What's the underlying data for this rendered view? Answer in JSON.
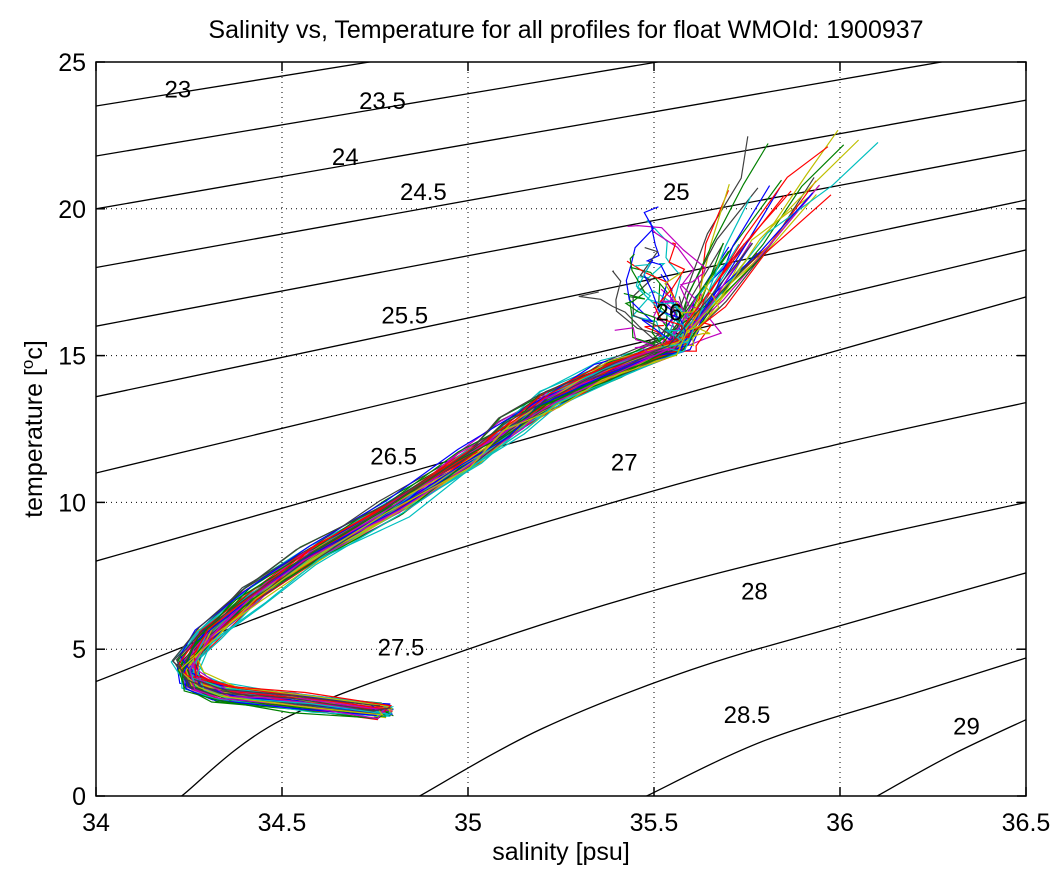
{
  "chart_data": {
    "type": "line",
    "title": "Salinity vs, Temperature for all profiles for float WMOId: 1900937",
    "xlabel": "salinity [psu]",
    "ylabel_main": "temperature [",
    "ylabel_sup": "o",
    "ylabel_tail": "c]",
    "xlim": [
      34,
      36.5
    ],
    "ylim": [
      0,
      25
    ],
    "xticks": [
      "34",
      "34.5",
      "35",
      "35.5",
      "36",
      "36.5"
    ],
    "yticks": [
      "0",
      "5",
      "10",
      "15",
      "20",
      "25"
    ],
    "grid": "dotted",
    "density_contours": [
      {
        "label": "23",
        "label_at": [
          34.22,
          24.1
        ],
        "points": [
          [
            34.0,
            23.5
          ],
          [
            36.5,
            28.6
          ]
        ]
      },
      {
        "label": "23.5",
        "label_at": [
          34.77,
          23.7
        ],
        "points": [
          [
            34.0,
            21.8
          ],
          [
            36.5,
            27.1
          ]
        ]
      },
      {
        "label": "24",
        "label_at": [
          34.67,
          21.8
        ],
        "points": [
          [
            34.0,
            20.0
          ],
          [
            36.5,
            25.5
          ]
        ]
      },
      {
        "label": "24.5",
        "label_at": [
          34.88,
          20.6
        ],
        "points": [
          [
            34.0,
            18.0
          ],
          [
            36.5,
            23.7
          ]
        ]
      },
      {
        "label": "25",
        "label_at": [
          35.56,
          20.6
        ],
        "points": [
          [
            34.0,
            16.0
          ],
          [
            36.5,
            22.0
          ]
        ]
      },
      {
        "label": "25.5",
        "label_at": [
          34.83,
          16.4
        ],
        "points": [
          [
            34.0,
            13.6
          ],
          [
            36.5,
            20.3
          ]
        ]
      },
      {
        "label": "26",
        "label_at": [
          35.54,
          16.5
        ],
        "points": [
          [
            34.0,
            11.0
          ],
          [
            36.5,
            18.6
          ]
        ]
      },
      {
        "label": "26.5",
        "label_at": [
          34.8,
          11.6
        ],
        "points": [
          [
            34.0,
            8.0
          ],
          [
            36.5,
            17.0
          ]
        ]
      },
      {
        "label": "27",
        "label_at": [
          35.42,
          11.4
        ],
        "points": [
          [
            34.0,
            3.9
          ],
          [
            34.7,
            7.3
          ],
          [
            35.5,
            10.4
          ],
          [
            36.0,
            12.0
          ],
          [
            36.5,
            13.4
          ]
        ]
      },
      {
        "label": "27.5",
        "label_at": [
          34.82,
          5.1
        ],
        "points": [
          [
            34.23,
            0.0
          ],
          [
            34.5,
            2.6
          ],
          [
            35.0,
            5.0
          ],
          [
            35.5,
            7.0
          ],
          [
            36.0,
            8.6
          ],
          [
            36.5,
            10.0
          ]
        ]
      },
      {
        "label": "28",
        "label_at": [
          35.77,
          7.0
        ],
        "points": [
          [
            34.87,
            0.0
          ],
          [
            35.2,
            2.3
          ],
          [
            35.6,
            4.3
          ],
          [
            36.0,
            5.8
          ],
          [
            36.5,
            7.6
          ]
        ]
      },
      {
        "label": "28.5",
        "label_at": [
          35.75,
          2.8
        ],
        "points": [
          [
            35.48,
            0.0
          ],
          [
            35.8,
            1.9
          ],
          [
            36.2,
            3.5
          ],
          [
            36.5,
            4.7
          ]
        ]
      },
      {
        "label": "29",
        "label_at": [
          36.34,
          2.4
        ],
        "points": [
          [
            36.1,
            0.0
          ],
          [
            36.3,
            1.4
          ],
          [
            36.5,
            2.6
          ]
        ]
      }
    ],
    "profile_colors": [
      "#0000ff",
      "#008000",
      "#ff0000",
      "#00bfbf",
      "#bf00bf",
      "#bfbf00",
      "#404040"
    ],
    "profile_count": 70,
    "profile_envelope": {
      "deep_end": [
        34.77,
        2.9
      ],
      "lower_spine": [
        [
          34.77,
          2.9
        ],
        [
          34.55,
          3.2
        ],
        [
          34.35,
          3.5
        ],
        [
          34.26,
          3.9
        ],
        [
          34.24,
          4.5
        ],
        [
          34.3,
          5.5
        ],
        [
          34.42,
          6.8
        ],
        [
          34.58,
          8.2
        ],
        [
          34.8,
          9.8
        ],
        [
          35.0,
          11.5
        ],
        [
          35.12,
          12.6
        ],
        [
          35.22,
          13.5
        ],
        [
          35.38,
          14.5
        ],
        [
          35.55,
          15.3
        ]
      ],
      "upper_fan_top": [
        [
          35.55,
          15.3
        ],
        [
          35.62,
          17.0
        ],
        [
          35.7,
          19.0
        ],
        [
          35.78,
          21.0
        ],
        [
          35.85,
          22.5
        ]
      ],
      "scatter_region": {
        "x": [
          34.75,
          35.85
        ],
        "y": [
          12.5,
          21.0
        ]
      }
    }
  }
}
